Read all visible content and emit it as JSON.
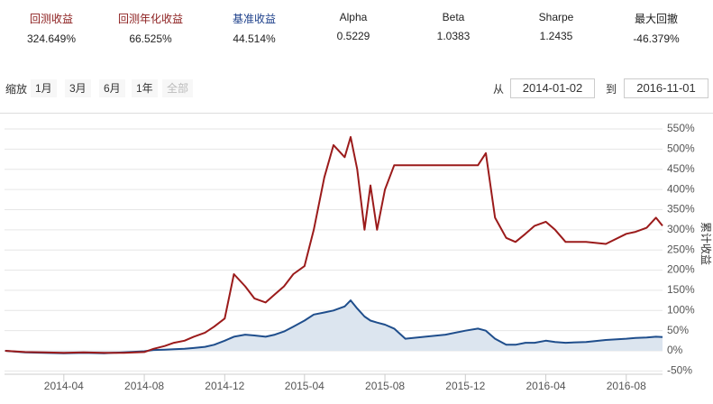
{
  "stats": [
    {
      "label": "回测收益",
      "value": "324.649%",
      "color": "#8b1c1c"
    },
    {
      "label": "回测年化收益",
      "value": "66.525%",
      "color": "#8b1c1c"
    },
    {
      "label": "基准收益",
      "value": "44.514%",
      "color": "#1c3f8a"
    },
    {
      "label": "Alpha",
      "value": "0.5229",
      "color": "#222222"
    },
    {
      "label": "Beta",
      "value": "1.0383",
      "color": "#222222"
    },
    {
      "label": "Sharpe",
      "value": "1.2435",
      "color": "#222222"
    },
    {
      "label": "最大回撤",
      "value": "-46.379%",
      "color": "#222222"
    }
  ],
  "zoom": {
    "label": "缩放",
    "buttons": [
      "1月",
      "3月",
      "6月",
      "1年",
      "全部"
    ]
  },
  "range": {
    "from_label": "从",
    "from": "2014-01-02",
    "to_label": "到",
    "to": "2016-11-01"
  },
  "chart_data": {
    "type": "line",
    "y_label": "累计收益",
    "x": [
      "2014-01-02",
      "2014-02-01",
      "2014-03-01",
      "2014-04-01",
      "2014-05-01",
      "2014-06-01",
      "2014-07-01",
      "2014-08-01",
      "2014-08-15",
      "2014-09-01",
      "2014-09-15",
      "2014-10-01",
      "2014-10-15",
      "2014-11-01",
      "2014-11-15",
      "2014-12-01",
      "2014-12-15",
      "2015-01-01",
      "2015-01-15",
      "2015-02-01",
      "2015-02-15",
      "2015-03-01",
      "2015-03-15",
      "2015-04-01",
      "2015-04-15",
      "2015-05-01",
      "2015-05-15",
      "2015-06-01",
      "2015-06-10",
      "2015-06-20",
      "2015-07-01",
      "2015-07-10",
      "2015-07-20",
      "2015-08-01",
      "2015-08-15",
      "2015-09-01",
      "2015-10-01",
      "2015-11-01",
      "2015-12-01",
      "2015-12-20",
      "2016-01-01",
      "2016-01-15",
      "2016-02-01",
      "2016-02-15",
      "2016-03-01",
      "2016-03-15",
      "2016-04-01",
      "2016-04-15",
      "2016-05-01",
      "2016-06-01",
      "2016-07-01",
      "2016-08-01",
      "2016-08-15",
      "2016-09-01",
      "2016-09-15",
      "2016-09-25"
    ],
    "series": [
      {
        "color": "#9b1b1b",
        "values": [
          0,
          -3,
          -4,
          -5,
          -4,
          -5,
          -5,
          -3,
          5,
          12,
          20,
          25,
          35,
          45,
          60,
          80,
          190,
          160,
          130,
          120,
          140,
          160,
          190,
          210,
          300,
          430,
          510,
          480,
          530,
          450,
          300,
          410,
          300,
          400,
          460,
          460,
          460,
          460,
          460,
          460,
          490,
          330,
          280,
          270,
          290,
          310,
          320,
          300,
          270,
          270,
          265,
          290,
          295,
          305,
          330,
          310
        ]
      },
      {
        "color": "#1f4e8c",
        "area_color": "#dce5ef",
        "values": [
          0,
          -4,
          -5,
          -6,
          -5,
          -6,
          -4,
          -1,
          2,
          3,
          4,
          5,
          7,
          10,
          15,
          25,
          35,
          40,
          38,
          35,
          40,
          48,
          60,
          75,
          90,
          95,
          100,
          110,
          125,
          105,
          85,
          75,
          70,
          65,
          55,
          30,
          35,
          40,
          50,
          55,
          50,
          30,
          15,
          15,
          20,
          20,
          25,
          22,
          20,
          22,
          27,
          30,
          32,
          33,
          35,
          34
        ]
      }
    ],
    "xlim": [
      "2014-01-01",
      "2016-09-25"
    ],
    "xticks": [
      {
        "value": "2014-04-01",
        "label": "2014-04"
      },
      {
        "value": "2014-08-01",
        "label": "2014-08"
      },
      {
        "value": "2014-12-01",
        "label": "2014-12"
      },
      {
        "value": "2015-04-01",
        "label": "2015-04"
      },
      {
        "value": "2015-08-01",
        "label": "2015-08"
      },
      {
        "value": "2015-12-01",
        "label": "2015-12"
      },
      {
        "value": "2016-04-01",
        "label": "2016-04"
      },
      {
        "value": "2016-08-01",
        "label": "2016-08"
      }
    ],
    "ylim": [
      -50,
      550
    ],
    "yticks": [
      {
        "value": -50,
        "label": "-50%"
      },
      {
        "value": 0,
        "label": "0%"
      },
      {
        "value": 50,
        "label": "50%"
      },
      {
        "value": 100,
        "label": "100%"
      },
      {
        "value": 150,
        "label": "150%"
      },
      {
        "value": 200,
        "label": "200%"
      },
      {
        "value": 250,
        "label": "250%"
      },
      {
        "value": 300,
        "label": "300%"
      },
      {
        "value": 350,
        "label": "350%"
      },
      {
        "value": 400,
        "label": "400%"
      },
      {
        "value": 450,
        "label": "450%"
      },
      {
        "value": 500,
        "label": "500%"
      },
      {
        "value": 550,
        "label": "550%"
      }
    ],
    "grid": true
  }
}
